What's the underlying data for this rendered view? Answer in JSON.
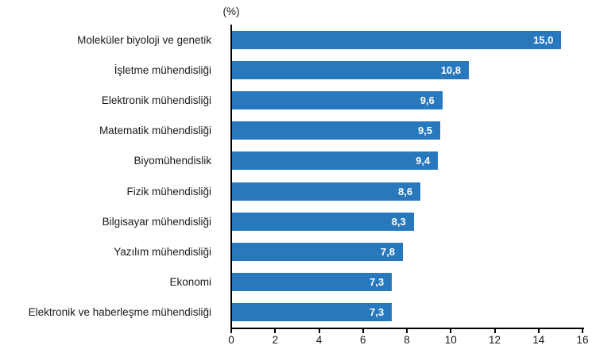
{
  "chart_data": {
    "type": "bar",
    "orientation": "horizontal",
    "title": "(%)",
    "categories": [
      "Moleküler biyoloji ve genetik",
      "İşletme mühendisliği",
      "Elektronik mühendisliği",
      "Matematik mühendisliği",
      "Biyomühendislik",
      "Fizik mühendisliği",
      "Bilgisayar mühendisliği",
      "Yazılım mühendisliği",
      "Ekonomi",
      "Elektronik ve haberleşme mühendisliği"
    ],
    "values": [
      15.0,
      10.8,
      9.6,
      9.5,
      9.4,
      8.6,
      8.3,
      7.8,
      7.3,
      7.3
    ],
    "value_labels": [
      "15,0",
      "10,8",
      "9,6",
      "9,5",
      "9,4",
      "8,6",
      "8,3",
      "7,8",
      "7,3",
      "7,3"
    ],
    "xlabel": "",
    "ylabel": "",
    "xlim": [
      0,
      16
    ],
    "x_ticks": [
      0,
      2,
      4,
      6,
      8,
      10,
      12,
      14,
      16
    ],
    "grid": false,
    "legend": false,
    "colors": {
      "bar": "#2878be",
      "value_label": "#ffffff",
      "axis": "#000000",
      "text": "#1a1a1a",
      "background": "#ffffff"
    }
  }
}
